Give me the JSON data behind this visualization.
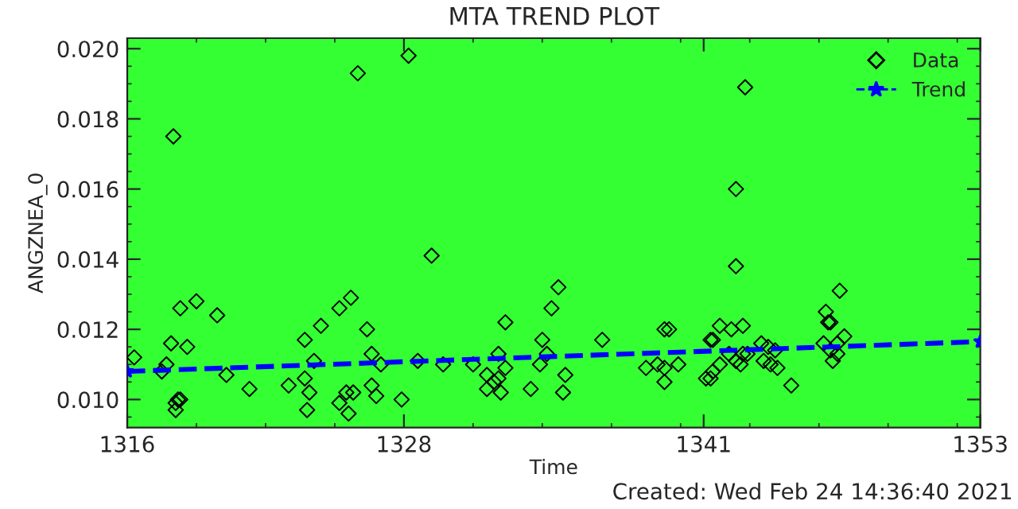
{
  "chart_data": {
    "type": "scatter",
    "title": "MTA TREND PLOT",
    "xlabel": "Time",
    "ylabel": "ANGZNEA_0",
    "annotations": [
      "Created: Wed Feb 24 14:36:40 2021"
    ],
    "xlim": [
      1316,
      1353
    ],
    "xticks": [
      1316,
      1328,
      1341,
      1353
    ],
    "ylim": [
      0.0092,
      0.0203
    ],
    "yticks": [
      {
        "value": 0.01,
        "label": "0.010"
      },
      {
        "value": 0.012,
        "label": "0.012"
      },
      {
        "value": 0.014,
        "label": "0.014"
      },
      {
        "value": 0.016,
        "label": "0.016"
      },
      {
        "value": 0.018,
        "label": "0.018"
      },
      {
        "value": 0.02,
        "label": "0.020"
      }
    ],
    "grid": false,
    "legend": "top right",
    "series": [
      {
        "name": "Data",
        "color": "#000000",
        "marker": "diamond",
        "x": [
          1316.3,
          1318.0,
          1317.7,
          1317.5,
          1317.9,
          1318.3,
          1318.6,
          1319.0,
          1318.1,
          1318.2,
          1318.3,
          1318.1,
          1319.9,
          1320.3,
          1321.3,
          1323.0,
          1323.7,
          1323.7,
          1323.9,
          1323.8,
          1324.1,
          1324.4,
          1325.2,
          1325.7,
          1326.0,
          1325.2,
          1325.5,
          1325.8,
          1325.6,
          1326.4,
          1326.6,
          1326.6,
          1326.8,
          1327.0,
          1327.9,
          1328.2,
          1328.6,
          1329.2,
          1329.7,
          1331.0,
          1331.6,
          1331.6,
          1331.9,
          1332.1,
          1332.1,
          1332.4,
          1332.4,
          1332.2,
          1333.5,
          1333.9,
          1334.0,
          1334.2,
          1334.4,
          1334.7,
          1335.0,
          1334.9,
          1336.6,
          1338.5,
          1339.0,
          1339.3,
          1339.3,
          1339.9,
          1339.3,
          1339.5,
          1341.3,
          1341.1,
          1341.3,
          1341.4,
          1341.7,
          1341.4,
          1341.7,
          1342.2,
          1342.7,
          1342.8,
          1342.4,
          1342.4,
          1342.1,
          1342.4,
          1342.6,
          1342.7,
          1342.9,
          1343.5,
          1343.6,
          1343.8,
          1343.9,
          1344.2,
          1344.1,
          1344.8,
          1346.3,
          1346.4,
          1346.5,
          1346.9,
          1346.2,
          1346.5,
          1346.6,
          1346.8,
          1347.1,
          1346.8
        ],
        "values": [
          0.0112,
          0.0175,
          0.011,
          0.0108,
          0.0116,
          0.0126,
          0.0115,
          0.0128,
          0.0099,
          0.01,
          0.01,
          0.0097,
          0.0124,
          0.0107,
          0.0103,
          0.0104,
          0.0117,
          0.0106,
          0.0102,
          0.0097,
          0.0111,
          0.0121,
          0.0126,
          0.0129,
          0.0193,
          0.0099,
          0.0102,
          0.0102,
          0.0096,
          0.012,
          0.0113,
          0.0104,
          0.0101,
          0.011,
          0.01,
          0.0198,
          0.0111,
          0.0141,
          0.011,
          0.011,
          0.0107,
          0.0103,
          0.0105,
          0.0106,
          0.0113,
          0.0109,
          0.0122,
          0.0102,
          0.0103,
          0.011,
          0.0117,
          0.0113,
          0.0126,
          0.0132,
          0.0107,
          0.0102,
          0.0117,
          0.0109,
          0.011,
          0.0109,
          0.0105,
          0.011,
          0.012,
          0.012,
          0.0117,
          0.0106,
          0.0106,
          0.0108,
          0.011,
          0.0117,
          0.0121,
          0.012,
          0.0121,
          0.0189,
          0.016,
          0.0138,
          0.0113,
          0.0111,
          0.011,
          0.0113,
          0.0113,
          0.0116,
          0.0111,
          0.0115,
          0.011,
          0.0109,
          0.0114,
          0.0104,
          0.0125,
          0.0122,
          0.0122,
          0.0131,
          0.0116,
          0.0114,
          0.0111,
          0.0116,
          0.0118,
          0.0113
        ]
      },
      {
        "name": "Trend",
        "type": "line",
        "color": "#0000ff",
        "marker": "star",
        "line_style": "dashed",
        "x": [
          1316,
          1353
        ],
        "values": [
          0.0108,
          0.01165
        ]
      }
    ]
  }
}
